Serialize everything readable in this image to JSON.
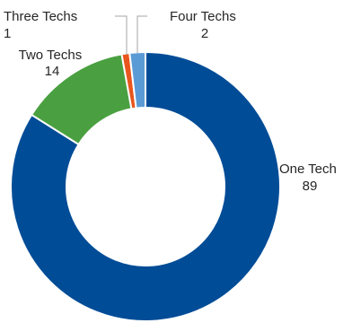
{
  "chart_data": {
    "type": "pie",
    "variant": "donut",
    "legend": "none",
    "slices": [
      {
        "label": "One Tech",
        "value": 89,
        "value_label": "89",
        "color": "#004c97"
      },
      {
        "label": "Two Techs",
        "value": 14,
        "value_label": "14",
        "color": "#4aa040"
      },
      {
        "label": "Three Techs",
        "value": 1,
        "value_label": "1",
        "color": "#e8561e"
      },
      {
        "label": "Four Techs",
        "value": 2,
        "value_label": "2",
        "color": "#5b9bd5"
      }
    ]
  }
}
